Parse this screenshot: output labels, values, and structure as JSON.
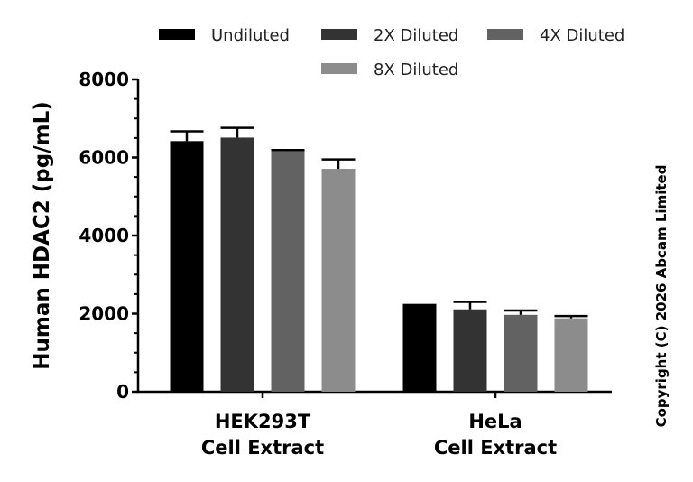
{
  "chart_data": {
    "type": "bar",
    "categories": [
      [
        "HEK293T",
        "Cell Extract"
      ],
      [
        "HeLa",
        "Cell Extract"
      ]
    ],
    "series": [
      {
        "name": "Undiluted",
        "color": "#000000",
        "values": [
          6420,
          2250
        ],
        "errors": [
          250,
          0
        ]
      },
      {
        "name": "2X Diluted",
        "color": "#333333",
        "values": [
          6510,
          2110
        ],
        "errors": [
          250,
          190
        ]
      },
      {
        "name": "4X Diluted",
        "color": "#626262",
        "values": [
          6160,
          1970
        ],
        "errors": [
          30,
          110
        ]
      },
      {
        "name": "8X Diluted",
        "color": "#8c8c8c",
        "values": [
          5710,
          1880
        ],
        "errors": [
          240,
          60
        ]
      }
    ],
    "ylabel": "Human HDAC2 (pg/mL)",
    "ylim": [
      0,
      8000
    ],
    "yticks": [
      0,
      2000,
      4000,
      6000,
      8000
    ],
    "legend_position": "top",
    "grid": false
  },
  "copyright": "Copyright (C) 2026 Abcam Limited"
}
